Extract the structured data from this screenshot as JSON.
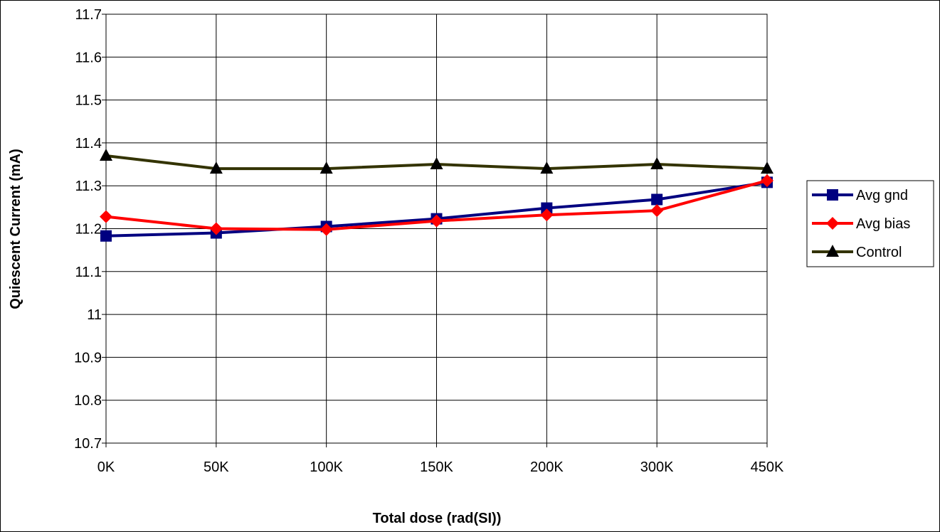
{
  "chart_data": {
    "type": "line",
    "title": "",
    "xlabel": "Total dose (rad(SI))",
    "ylabel": "Quiescent Current (mA)",
    "categories": [
      "0K",
      "50K",
      "100K",
      "150K",
      "200K",
      "300K",
      "450K"
    ],
    "ylim": [
      10.7,
      11.7
    ],
    "yticks": [
      "10.7",
      "10.8",
      "10.9",
      "11",
      "11.1",
      "11.2",
      "11.3",
      "11.4",
      "11.5",
      "11.6",
      "11.7"
    ],
    "grid": true,
    "legend_position": "right",
    "series": [
      {
        "name": "Avg gnd",
        "values": [
          11.183,
          11.19,
          11.205,
          11.223,
          11.248,
          11.268,
          11.308
        ],
        "color": "#000080",
        "marker": "square"
      },
      {
        "name": "Avg bias",
        "values": [
          11.228,
          11.2,
          11.198,
          11.218,
          11.232,
          11.242,
          11.312
        ],
        "color": "#ff0000",
        "marker": "diamond"
      },
      {
        "name": "Control",
        "values": [
          11.37,
          11.34,
          11.34,
          11.35,
          11.34,
          11.35,
          11.34
        ],
        "color": "#333300",
        "marker": "triangle"
      }
    ]
  }
}
